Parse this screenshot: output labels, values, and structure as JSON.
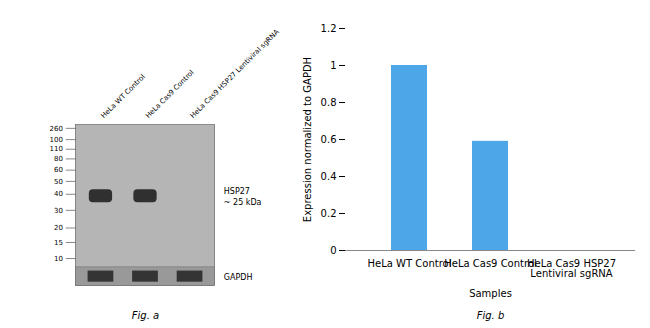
{
  "chart_data": [
    {
      "type": "blot",
      "categories": [
        "HeLa WT Control",
        "HeLa Cas9 Control",
        "HeLa Cas9 HSP27 Lentiviral sgRNA"
      ],
      "markers": [
        260,
        100,
        110,
        80,
        60,
        50,
        40,
        30,
        20,
        15,
        10
      ],
      "annotations": [
        "HSP27\n~ 25 kDa",
        "GAPDH"
      ],
      "colors": [
        "#b5b5b5",
        "#999999",
        "#252525"
      ],
      "caption": "Fig. a"
    },
    {
      "type": "bar",
      "categories": [
        "HeLa WT Control",
        "HeLa Cas9 Control",
        "HeLa Cas9 HSP27\nLentiviral sgRNA"
      ],
      "values": [
        1.0,
        0.59,
        0.0
      ],
      "color": "#4da6e8",
      "xlabel": "Samples",
      "ylabel": "Expression normalized to GAPDH",
      "ylim": [
        0,
        1.2
      ],
      "yticks": [
        0,
        0.2,
        0.4,
        0.6,
        0.8,
        1.0,
        1.2
      ],
      "caption": "Fig. b"
    }
  ]
}
